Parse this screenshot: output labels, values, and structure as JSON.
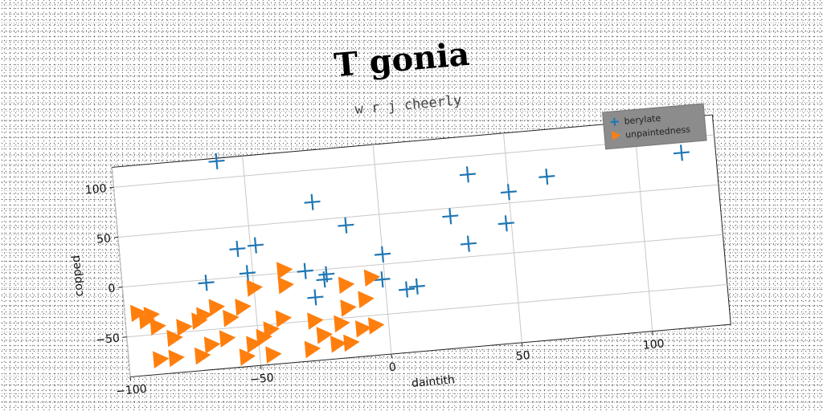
{
  "chart_data": {
    "type": "scatter",
    "title": "T gonia",
    "subtitle": "w r j cheerly",
    "xlabel": "daintith",
    "ylabel": "copped",
    "xlim": [
      -100,
      130
    ],
    "ylim": [
      -90,
      120
    ],
    "x_ticks": [
      -100,
      -50,
      0,
      50,
      100
    ],
    "y_ticks": [
      -50,
      0,
      50,
      100
    ],
    "grid": true,
    "legend_position": "top-right",
    "series": [
      {
        "name": "berylate",
        "marker": "plus",
        "color": "#1f77b4",
        "points": [
          [
            -60,
            117
          ],
          [
            -55,
            28
          ],
          [
            -48,
            30
          ],
          [
            -52,
            3
          ],
          [
            -68,
            -3
          ],
          [
            -25,
            68
          ],
          [
            -13,
            42
          ],
          [
            -30,
            0
          ],
          [
            -22,
            -5
          ],
          [
            -23,
            -10
          ],
          [
            -27,
            -27
          ],
          [
            0,
            10
          ],
          [
            -1,
            -15
          ],
          [
            8,
            -27
          ],
          [
            12,
            -25
          ],
          [
            27,
            42
          ],
          [
            35,
            82
          ],
          [
            33,
            13
          ],
          [
            50,
            61
          ],
          [
            48,
            30
          ],
          [
            65,
            73
          ],
          [
            117,
            85
          ]
        ]
      },
      {
        "name": "unpaintedness",
        "marker": "triangle-right",
        "color": "#ff7f0e",
        "points": [
          [
            -95,
            -27
          ],
          [
            -92,
            -35
          ],
          [
            -90,
            -30
          ],
          [
            -88,
            -42
          ],
          [
            -78,
            -45
          ],
          [
            -82,
            -55
          ],
          [
            -70,
            -35
          ],
          [
            -72,
            -40
          ],
          [
            -65,
            -28
          ],
          [
            -60,
            -40
          ],
          [
            -55,
            -30
          ],
          [
            -68,
            -65
          ],
          [
            -62,
            -60
          ],
          [
            -52,
            -68
          ],
          [
            -48,
            -62
          ],
          [
            -45,
            -55
          ],
          [
            -40,
            -45
          ],
          [
            -50,
            -12
          ],
          [
            -38,
            3
          ],
          [
            -38,
            -12
          ],
          [
            -28,
            -50
          ],
          [
            -25,
            -65
          ],
          [
            -18,
            -55
          ],
          [
            -15,
            -40
          ],
          [
            -15,
            -17
          ],
          [
            -8,
            -33
          ],
          [
            -5,
            -12
          ],
          [
            -5,
            -60
          ],
          [
            -10,
            -62
          ],
          [
            -20,
            -75
          ],
          [
            -30,
            -78
          ],
          [
            -45,
            -80
          ],
          [
            -55,
            -80
          ],
          [
            -72,
            -75
          ],
          [
            -82,
            -75
          ],
          [
            -88,
            -75
          ],
          [
            -15,
            -75
          ]
        ]
      }
    ]
  }
}
